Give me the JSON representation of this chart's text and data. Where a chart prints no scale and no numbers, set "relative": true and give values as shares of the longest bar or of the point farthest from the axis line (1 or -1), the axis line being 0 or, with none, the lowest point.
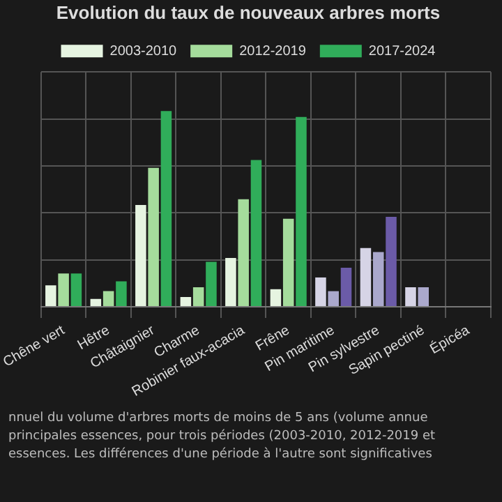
{
  "chart_data": {
    "type": "bar",
    "title": "Evolution du taux de nouveaux arbres morts",
    "relative": true,
    "grid": true,
    "legend": "top",
    "categories": [
      "Chêne vert",
      "Hêtre",
      "Châtaignier",
      "Charme",
      "Robinier faux-acacia",
      "Frêne",
      "Pin maritime",
      "Pin sylvestre",
      "Sapin pectiné",
      "Épicéa"
    ],
    "series": [
      {
        "name": "2003-2010",
        "color": "#e6f4e1",
        "colors": [
          "#e6f4e1",
          "#e6f4e1",
          "#e6f4e1",
          "#e6f4e1",
          "#e6f4e1",
          "#e6f4e1",
          "#d6d4e6",
          "#d6d4e6",
          "#d6d4e6",
          "#d6d4e6"
        ],
        "values": [
          0.11,
          0.04,
          0.52,
          0.05,
          0.25,
          0.09,
          0.15,
          0.3,
          0.1,
          null
        ]
      },
      {
        "name": "2012-2019",
        "color": "#a5dc9c",
        "colors": [
          "#a5dc9c",
          "#a5dc9c",
          "#a5dc9c",
          "#a5dc9c",
          "#a5dc9c",
          "#a5dc9c",
          "#aaa8cc",
          "#aaa8cc",
          "#aaa8cc",
          "#aaa8cc"
        ],
        "values": [
          0.17,
          0.08,
          0.71,
          0.1,
          0.55,
          0.45,
          0.08,
          0.28,
          0.1,
          null
        ]
      },
      {
        "name": "2017-2024",
        "color": "#30ad5a",
        "colors": [
          "#30ad5a",
          "#30ad5a",
          "#30ad5a",
          "#30ad5a",
          "#30ad5a",
          "#30ad5a",
          "#6b5ba8",
          "#6b5ba8",
          "#6b5ba8",
          "#6b5ba8"
        ],
        "values": [
          0.17,
          0.13,
          1,
          0.23,
          0.75,
          0.97,
          0.2,
          0.46,
          null,
          null
        ]
      }
    ],
    "annotations": [
      "nnuel du volume d'arbres morts de moins de 5 ans (volume annue",
      "principales essences, pour trois périodes (2003-2010, 2012-2019 et",
      "essences. Les différences d'une période à l'autre sont significatives"
    ]
  }
}
